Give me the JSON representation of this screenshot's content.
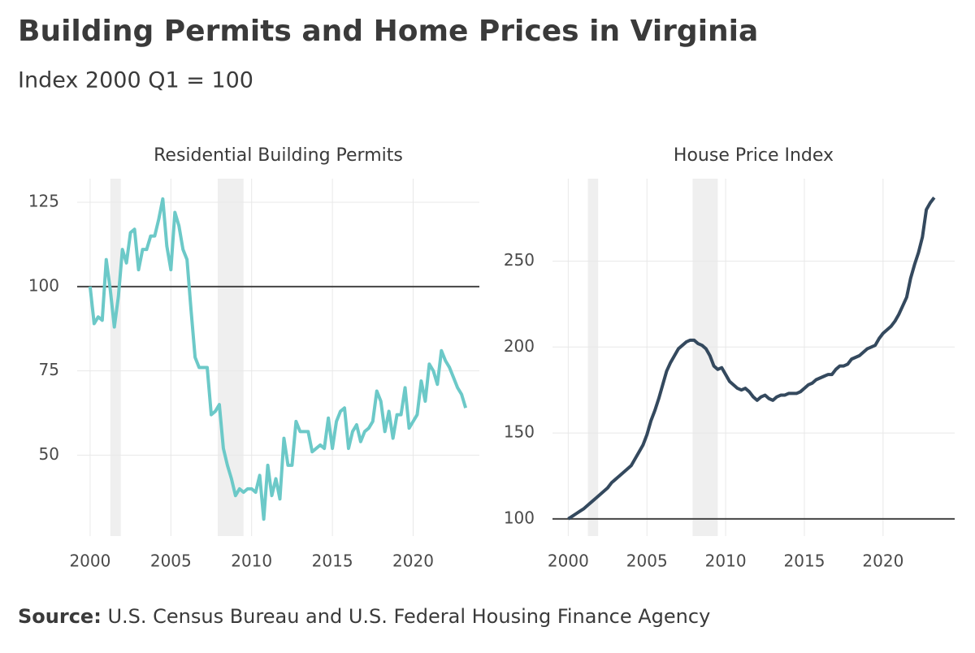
{
  "title": "Building Permits and Home Prices in Virginia",
  "subtitle": "Index 2000 Q1 = 100",
  "source_label": "Source:",
  "source_text": "U.S. Census Bureau and U.S. Federal Housing Finance Agency",
  "chart_data": [
    {
      "type": "line",
      "title": "Residential Building Permits",
      "x": [
        2000,
        2000.25,
        2000.5,
        2000.75,
        2001,
        2001.25,
        2001.5,
        2001.75,
        2002,
        2002.25,
        2002.5,
        2002.75,
        2003,
        2003.25,
        2003.5,
        2003.75,
        2004,
        2004.25,
        2004.5,
        2004.75,
        2005,
        2005.25,
        2005.5,
        2005.75,
        2006,
        2006.25,
        2006.5,
        2006.75,
        2007,
        2007.25,
        2007.5,
        2007.75,
        2008,
        2008.25,
        2008.5,
        2008.75,
        2009,
        2009.25,
        2009.5,
        2009.75,
        2010,
        2010.25,
        2010.5,
        2010.75,
        2011,
        2011.25,
        2011.5,
        2011.75,
        2012,
        2012.25,
        2012.5,
        2012.75,
        2013,
        2013.25,
        2013.5,
        2013.75,
        2014,
        2014.25,
        2014.5,
        2014.75,
        2015,
        2015.25,
        2015.5,
        2015.75,
        2016,
        2016.25,
        2016.5,
        2016.75,
        2017,
        2017.25,
        2017.5,
        2017.75,
        2018,
        2018.25,
        2018.5,
        2018.75,
        2019,
        2019.25,
        2019.5,
        2019.75,
        2020,
        2020.25,
        2020.5,
        2020.75,
        2021,
        2021.25,
        2021.5,
        2021.75,
        2022,
        2022.25,
        2022.5,
        2022.75,
        2023,
        2023.25
      ],
      "series": [
        {
          "color": "#6cc9c8",
          "values": [
            100,
            89,
            91,
            90,
            108,
            99,
            88,
            97,
            111,
            107,
            116,
            117,
            105,
            111,
            111,
            115,
            115,
            120,
            126,
            112,
            105,
            122,
            118,
            111,
            108,
            93,
            79,
            76,
            76,
            76,
            62,
            63,
            65,
            52,
            47,
            43,
            38,
            40,
            39,
            40,
            40,
            39,
            44,
            31,
            47,
            38,
            43,
            37,
            55,
            47,
            47,
            60,
            57,
            57,
            57,
            51,
            52,
            53,
            52,
            61,
            52,
            60,
            63,
            64,
            52,
            57,
            59,
            54,
            57,
            58,
            60,
            69,
            66,
            57,
            63,
            55,
            62,
            62,
            70,
            58,
            60,
            62,
            72,
            66,
            77,
            75,
            71,
            81,
            78,
            76,
            73,
            70,
            68,
            64
          ]
        }
      ],
      "xlim": [
        1999.2,
        2024.1
      ],
      "ylim": [
        26,
        132
      ],
      "xticks": [
        2000,
        2005,
        2010,
        2015,
        2020
      ],
      "yticks": [
        50,
        75,
        100,
        125
      ],
      "shaded_regions": [
        [
          2001.25,
          2001.9
        ],
        [
          2007.9,
          2009.5
        ]
      ],
      "reference_line": 100,
      "grid": true
    },
    {
      "type": "line",
      "title": "House Price Index",
      "x": [
        2000,
        2000.25,
        2000.5,
        2000.75,
        2001,
        2001.25,
        2001.5,
        2001.75,
        2002,
        2002.25,
        2002.5,
        2002.75,
        2003,
        2003.25,
        2003.5,
        2003.75,
        2004,
        2004.25,
        2004.5,
        2004.75,
        2005,
        2005.25,
        2005.5,
        2005.75,
        2006,
        2006.25,
        2006.5,
        2006.75,
        2007,
        2007.25,
        2007.5,
        2007.75,
        2008,
        2008.25,
        2008.5,
        2008.75,
        2009,
        2009.25,
        2009.5,
        2009.75,
        2010,
        2010.25,
        2010.5,
        2010.75,
        2011,
        2011.25,
        2011.5,
        2011.75,
        2012,
        2012.25,
        2012.5,
        2012.75,
        2013,
        2013.25,
        2013.5,
        2013.75,
        2014,
        2014.25,
        2014.5,
        2014.75,
        2015,
        2015.25,
        2015.5,
        2015.75,
        2016,
        2016.25,
        2016.5,
        2016.75,
        2017,
        2017.25,
        2017.5,
        2017.75,
        2018,
        2018.25,
        2018.5,
        2018.75,
        2019,
        2019.25,
        2019.5,
        2019.75,
        2020,
        2020.25,
        2020.5,
        2020.75,
        2021,
        2021.25,
        2021.5,
        2021.75,
        2022,
        2022.25,
        2022.5,
        2022.75,
        2023,
        2023.25
      ],
      "series": [
        {
          "color": "#34495e",
          "values": [
            100,
            101.5,
            103,
            104.5,
            106,
            108,
            110,
            112,
            114,
            116,
            118,
            121,
            123,
            125,
            127,
            129,
            131,
            135,
            139,
            143,
            149,
            157,
            163,
            170,
            178,
            186,
            191,
            195,
            199,
            201,
            203,
            204,
            204,
            202,
            201,
            199,
            195,
            189,
            187,
            188,
            184,
            180,
            178,
            176,
            175,
            176,
            174,
            171,
            169,
            171,
            172,
            170,
            169,
            171,
            172,
            172,
            173,
            173,
            173,
            174,
            176,
            178,
            179,
            181,
            182,
            183,
            184,
            184,
            187,
            189,
            189,
            190,
            193,
            194,
            195,
            197,
            199,
            200,
            201,
            205,
            208,
            210,
            212,
            215,
            219,
            224,
            229,
            240,
            248,
            255,
            264,
            280,
            284,
            287
          ]
        }
      ],
      "xlim": [
        1999,
        2024.55
      ],
      "ylim": [
        90,
        298
      ],
      "xticks": [
        2000,
        2005,
        2010,
        2015,
        2020
      ],
      "yticks": [
        100,
        150,
        200,
        250
      ],
      "shaded_regions": [
        [
          2001.25,
          2001.9
        ],
        [
          2007.9,
          2009.5
        ]
      ],
      "reference_line": 100,
      "grid": true
    }
  ]
}
